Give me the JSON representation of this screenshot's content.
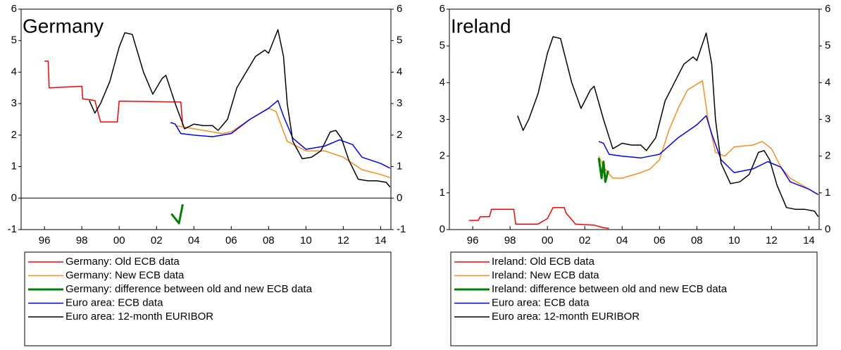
{
  "chart_data": [
    {
      "type": "line",
      "title": "Germany",
      "xlim": [
        1994.75,
        2014.55
      ],
      "xticks": [
        {
          "value": 1996,
          "label": "96"
        },
        {
          "value": 1998,
          "label": "98"
        },
        {
          "value": 2000,
          "label": "00"
        },
        {
          "value": 2002,
          "label": "02"
        },
        {
          "value": 2004,
          "label": "04"
        },
        {
          "value": 2006,
          "label": "06"
        },
        {
          "value": 2008,
          "label": "08"
        },
        {
          "value": 2010,
          "label": "10"
        },
        {
          "value": 2012,
          "label": "12"
        },
        {
          "value": 2014,
          "label": "14"
        }
      ],
      "ylim": [
        -1,
        6
      ],
      "yticks": [
        -1,
        0,
        1,
        2,
        3,
        4,
        5,
        6
      ],
      "zero_line": true,
      "legend": "bottom",
      "series": [
        {
          "name": "Germany: Old ECB data",
          "color": "#ff0000",
          "x": [
            1996.0,
            1996.2,
            1996.25,
            1998.0,
            1998.05,
            1998.7,
            1999.0,
            1999.9,
            2000.0,
            2003.3,
            2003.4
          ],
          "values": [
            4.35,
            4.35,
            3.5,
            3.55,
            3.15,
            3.1,
            2.42,
            2.42,
            3.08,
            3.05,
            2.3
          ]
        },
        {
          "name": "Germany: New ECB data",
          "color": "#ff8c1a",
          "x": [
            2003.0,
            2004.0,
            2005.0,
            2005.5,
            2006.0,
            2007.0,
            2008.0,
            2008.4,
            2009.0,
            2010.0,
            2011.0,
            2012.0,
            2013.0,
            2014.0,
            2014.5
          ],
          "values": [
            2.3,
            2.2,
            2.1,
            2.05,
            2.1,
            2.5,
            2.85,
            2.75,
            1.8,
            1.5,
            1.5,
            1.3,
            0.9,
            0.75,
            0.65
          ]
        },
        {
          "name": "Germany: difference between old and new ECB data",
          "color": "#008000",
          "width": 3,
          "x": [
            2002.8,
            2003.2,
            2003.4
          ],
          "values": [
            -0.5,
            -0.8,
            -0.2
          ]
        },
        {
          "name": "Euro area: ECB data",
          "color": "#0000ff",
          "x": [
            2002.75,
            2003.0,
            2003.3,
            2004.0,
            2005.0,
            2005.5,
            2006.0,
            2007.0,
            2008.0,
            2008.5,
            2008.8,
            2009.3,
            2010.0,
            2011.0,
            2011.8,
            2012.5,
            2013.0,
            2014.0,
            2014.5
          ],
          "values": [
            2.4,
            2.35,
            2.05,
            2.0,
            1.95,
            2.0,
            2.05,
            2.5,
            2.85,
            3.1,
            2.6,
            1.9,
            1.55,
            1.65,
            1.85,
            1.7,
            1.3,
            1.1,
            0.95
          ]
        },
        {
          "name": "Euro area: 12-month EURIBOR",
          "color": "#000000",
          "x": [
            1998.4,
            1998.7,
            1999.0,
            1999.5,
            2000.0,
            2000.3,
            2000.7,
            2001.3,
            2001.8,
            2002.3,
            2002.5,
            2003.0,
            2003.5,
            2004.0,
            2004.5,
            2005.0,
            2005.3,
            2005.8,
            2006.3,
            2006.8,
            2007.3,
            2007.8,
            2008.0,
            2008.5,
            2008.8,
            2009.0,
            2009.3,
            2009.8,
            2010.3,
            2010.8,
            2011.3,
            2011.6,
            2011.9,
            2012.3,
            2012.8,
            2013.3,
            2013.8,
            2014.3,
            2014.5
          ],
          "values": [
            3.1,
            2.7,
            3.0,
            3.7,
            4.8,
            5.25,
            5.2,
            4.0,
            3.3,
            3.8,
            3.9,
            3.0,
            2.2,
            2.35,
            2.3,
            2.3,
            2.15,
            2.5,
            3.5,
            4.0,
            4.5,
            4.7,
            4.6,
            5.35,
            4.5,
            3.0,
            1.8,
            1.25,
            1.3,
            1.5,
            2.1,
            2.15,
            1.9,
            1.2,
            0.6,
            0.55,
            0.55,
            0.5,
            0.35
          ]
        }
      ]
    },
    {
      "type": "line",
      "title": "Ireland",
      "xlim": [
        1994.75,
        2014.55
      ],
      "xticks": [
        {
          "value": 1996,
          "label": "96"
        },
        {
          "value": 1998,
          "label": "98"
        },
        {
          "value": 2000,
          "label": "00"
        },
        {
          "value": 2002,
          "label": "02"
        },
        {
          "value": 2004,
          "label": "04"
        },
        {
          "value": 2006,
          "label": "06"
        },
        {
          "value": 2008,
          "label": "08"
        },
        {
          "value": 2010,
          "label": "10"
        },
        {
          "value": 2012,
          "label": "12"
        },
        {
          "value": 2014,
          "label": "14"
        }
      ],
      "ylim": [
        0,
        6
      ],
      "yticks": [
        0,
        1,
        2,
        3,
        4,
        5,
        6
      ],
      "zero_line": false,
      "legend": "bottom",
      "series": [
        {
          "name": "Ireland: Old ECB data",
          "color": "#ff0000",
          "x": [
            1995.8,
            1996.3,
            1996.4,
            1996.9,
            1997.0,
            1998.2,
            1998.3,
            1999.5,
            2000.0,
            2000.3,
            2000.9,
            2001.0,
            2001.5,
            2002.5,
            2003.0,
            2003.3
          ],
          "values": [
            0.25,
            0.25,
            0.35,
            0.35,
            0.55,
            0.55,
            0.15,
            0.15,
            0.3,
            0.6,
            0.6,
            0.45,
            0.15,
            0.12,
            0.05,
            0.03
          ]
        },
        {
          "name": "Ireland: New ECB data",
          "color": "#ff8c1a",
          "x": [
            2002.75,
            2003.0,
            2003.5,
            2004.0,
            2005.0,
            2005.5,
            2006.0,
            2006.5,
            2007.0,
            2007.5,
            2008.3,
            2008.6,
            2009.0,
            2009.5,
            2010.0,
            2011.0,
            2011.5,
            2012.0,
            2012.5,
            2013.0,
            2014.0,
            2014.5
          ],
          "values": [
            2.0,
            1.7,
            1.4,
            1.4,
            1.55,
            1.65,
            1.9,
            2.7,
            3.3,
            3.8,
            4.05,
            3.0,
            2.1,
            2.0,
            2.25,
            2.3,
            2.4,
            2.2,
            1.7,
            1.4,
            1.1,
            0.95
          ]
        },
        {
          "name": "Ireland: difference between old and new ECB data",
          "color": "#008000",
          "width": 3,
          "x": [
            2002.75,
            2002.9,
            2003.0,
            2003.1,
            2003.25
          ],
          "values": [
            1.95,
            1.4,
            1.85,
            1.3,
            1.6
          ]
        },
        {
          "name": "Euro area: ECB data",
          "color": "#0000ff",
          "x": [
            2002.75,
            2003.0,
            2003.3,
            2004.0,
            2005.0,
            2005.5,
            2006.0,
            2007.0,
            2008.0,
            2008.5,
            2008.8,
            2009.3,
            2010.0,
            2011.0,
            2011.8,
            2012.5,
            2013.0,
            2014.0,
            2014.5
          ],
          "values": [
            2.4,
            2.35,
            2.05,
            2.0,
            1.95,
            2.0,
            2.05,
            2.5,
            2.85,
            3.1,
            2.6,
            1.9,
            1.55,
            1.65,
            1.85,
            1.7,
            1.3,
            1.1,
            0.95
          ]
        },
        {
          "name": "Euro area: 12-month EURIBOR",
          "color": "#000000",
          "x": [
            1998.4,
            1998.7,
            1999.0,
            1999.5,
            2000.0,
            2000.3,
            2000.7,
            2001.3,
            2001.8,
            2002.3,
            2002.5,
            2003.0,
            2003.5,
            2004.0,
            2004.5,
            2005.0,
            2005.3,
            2005.8,
            2006.3,
            2006.8,
            2007.3,
            2007.8,
            2008.0,
            2008.5,
            2008.8,
            2009.0,
            2009.3,
            2009.8,
            2010.3,
            2010.8,
            2011.3,
            2011.6,
            2011.9,
            2012.3,
            2012.8,
            2013.3,
            2013.8,
            2014.3,
            2014.5
          ],
          "values": [
            3.1,
            2.7,
            3.0,
            3.7,
            4.8,
            5.25,
            5.2,
            4.0,
            3.3,
            3.8,
            3.9,
            3.0,
            2.2,
            2.35,
            2.3,
            2.3,
            2.15,
            2.5,
            3.5,
            4.0,
            4.5,
            4.7,
            4.6,
            5.35,
            4.5,
            3.0,
            1.8,
            1.25,
            1.3,
            1.5,
            2.1,
            2.15,
            1.9,
            1.2,
            0.6,
            0.55,
            0.55,
            0.5,
            0.35
          ]
        }
      ]
    }
  ]
}
